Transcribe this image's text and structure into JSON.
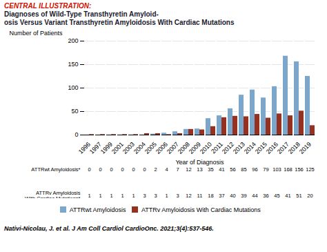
{
  "chart_data": {
    "type": "bar",
    "title": "CENTRAL ILLUSTRATION:",
    "subtitle": "Diagnoses of Wild-Type Transthyretin Amyloid-\nosis Versus Variant Transthyretin Amyloidosis With Cardiac Mutations",
    "categories": [
      "1996",
      "1997",
      "1999",
      "2001",
      "2003",
      "2004",
      "2005",
      "2006",
      "2007",
      "2008",
      "2009",
      "2010",
      "2011",
      "2012",
      "2013",
      "2014",
      "2015",
      "2016",
      "2017",
      "2018",
      "2019"
    ],
    "series": [
      {
        "name": "ATTRwt Amyloidosis",
        "color": "#7ba7cc",
        "table_label": [
          "ATTRwt Amyloidosis*"
        ],
        "values": [
          0,
          0,
          0,
          0,
          0,
          0,
          2,
          4,
          7,
          12,
          13,
          35,
          41,
          56,
          85,
          96,
          79,
          103,
          168,
          156,
          125
        ]
      },
      {
        "name": "ATTRv Amyloidosis With Cardiac Mutations",
        "color": "#963020",
        "table_label": [
          "ATTRv Amyloidosis",
          "With Cardiac Mutations*"
        ],
        "values": [
          1,
          1,
          1,
          1,
          1,
          3,
          3,
          1,
          3,
          12,
          11,
          18,
          37,
          40,
          39,
          44,
          36,
          45,
          41,
          51,
          20
        ]
      }
    ],
    "xlabel": "Year of Diagnosis",
    "ylabel": "Number of Patients",
    "ylim": [
      0,
      200
    ],
    "yticks": [
      0,
      50,
      100,
      150,
      200
    ],
    "grid": true,
    "legend": "bottom",
    "caption": "Nativi-Nicolau, J. et al. J Am Coll Cardiol CardioOnc. 2021;3(4):537-546."
  }
}
